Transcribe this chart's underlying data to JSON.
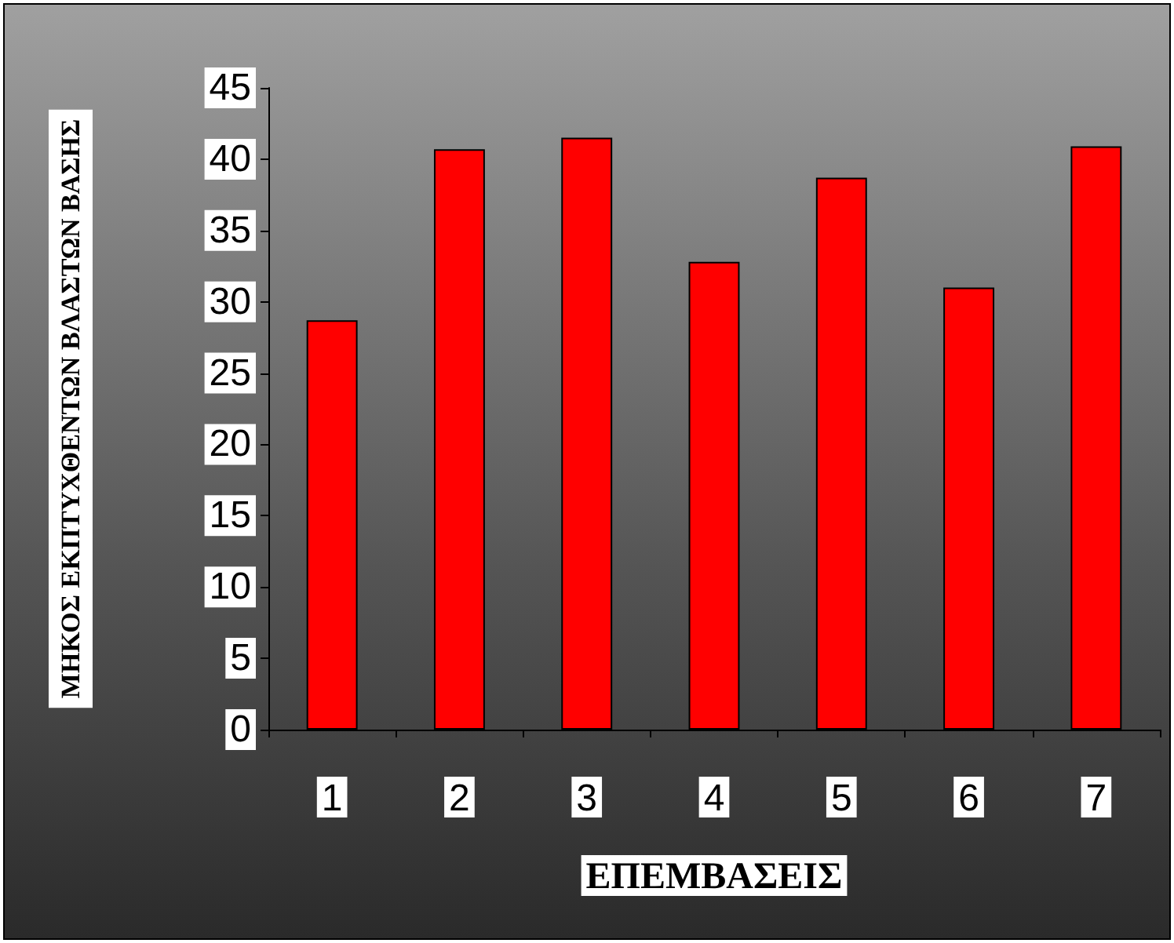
{
  "chart_data": {
    "type": "bar",
    "xlabel": "ΕΠΕΜΒΑΣΕΙΣ",
    "ylabel": "ΜΗΚΟΣ ΕΚΠΤΥΧΘΕΝΤΩΝ ΒΛΑΣΤΩΝ ΒΑΣΗΣ",
    "categories": [
      "1",
      "2",
      "3",
      "4",
      "5",
      "6",
      "7"
    ],
    "values": [
      28.7,
      40.7,
      41.5,
      32.8,
      38.7,
      31.0,
      40.9
    ],
    "color": "#ff0000",
    "ylim": [
      0,
      45
    ],
    "yticks": [
      0,
      5,
      10,
      15,
      20,
      25,
      30,
      35,
      40,
      45
    ],
    "grid": false
  }
}
